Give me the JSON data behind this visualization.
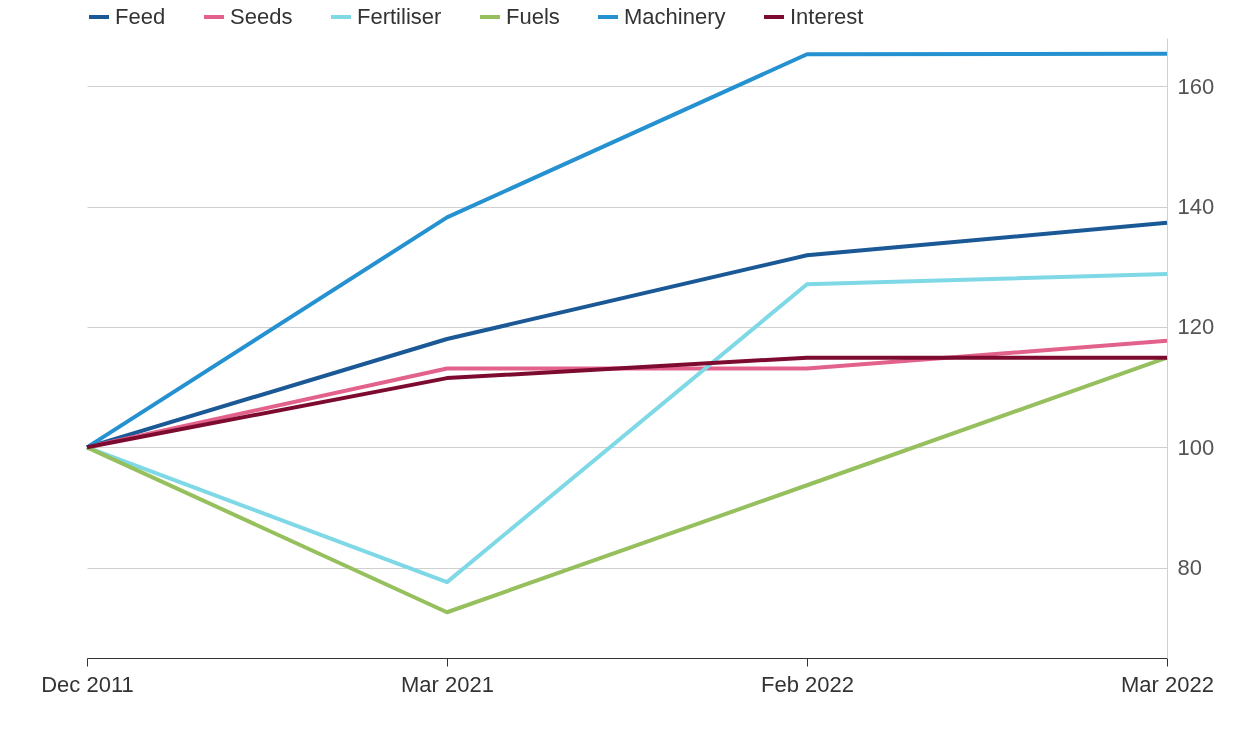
{
  "chart_data": {
    "type": "line",
    "categories": [
      "Dec 2011",
      "Mar 2021",
      "Feb 2022",
      "Mar 2022"
    ],
    "series": [
      {
        "name": "Feed",
        "color": "#1b5896",
        "values": [
          100,
          118,
          131.9,
          137.3
        ]
      },
      {
        "name": "Seeds",
        "color": "#e3628b",
        "values": [
          100,
          113.1,
          113.1,
          117.7
        ]
      },
      {
        "name": "Fertiliser",
        "color": "#7fd8e6",
        "values": [
          100,
          77.6,
          127.1,
          128.8
        ]
      },
      {
        "name": "Fuels",
        "color": "#96bf5d",
        "values": [
          100,
          72.6,
          93.7,
          114.9
        ]
      },
      {
        "name": "Machinery",
        "color": "#2591d1",
        "values": [
          100,
          138.2,
          165.3,
          165.4
        ]
      },
      {
        "name": "Interest",
        "color": "#7d0b2f",
        "values": [
          100,
          111.5,
          114.9,
          114.9
        ]
      }
    ],
    "ylim": [
      65,
      168
    ],
    "yticks": [
      80,
      100,
      120,
      140,
      160
    ],
    "grid": "y",
    "legend": "top left",
    "marker": "none",
    "line_style": "solid"
  }
}
